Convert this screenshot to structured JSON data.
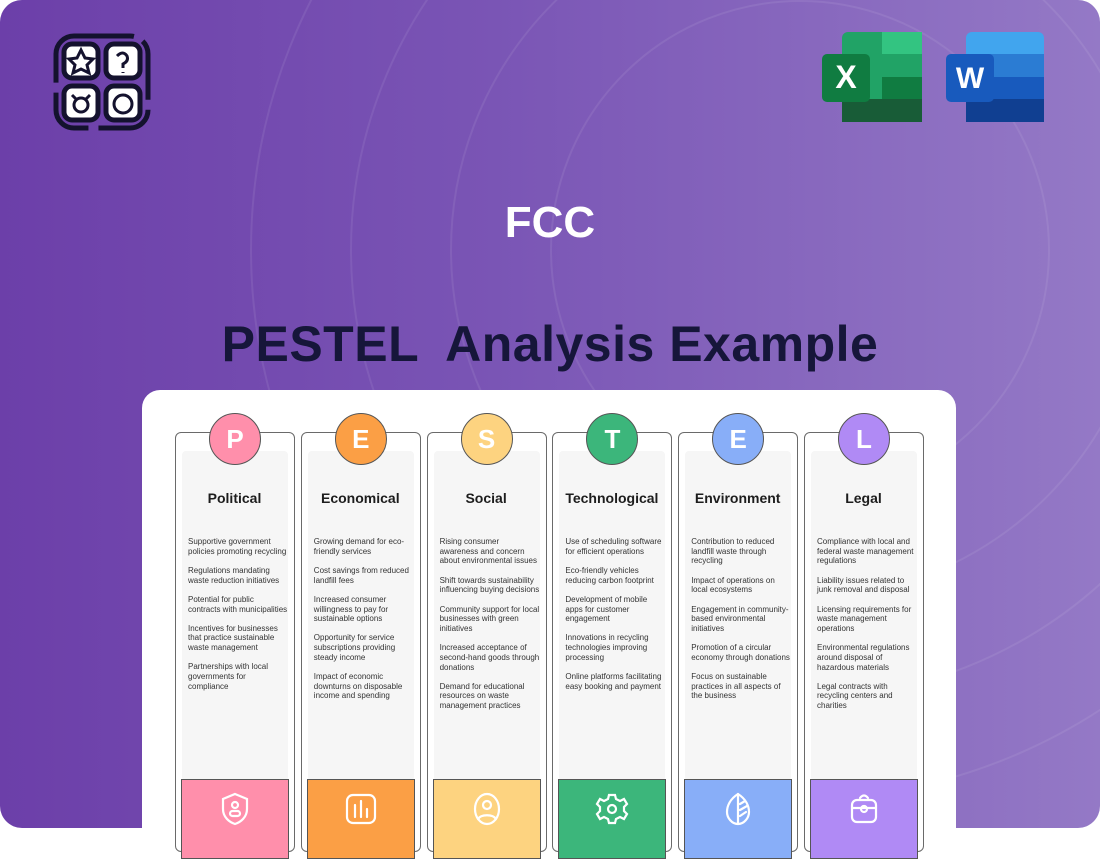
{
  "header": {
    "company": "FCC",
    "title": "PESTEL  Analysis Example",
    "app_icons": [
      "excel-icon",
      "word-icon"
    ],
    "excel_letter": "X",
    "word_letter": "W"
  },
  "columns": [
    {
      "letter": "P",
      "title": "Political",
      "color": "#ff8fab",
      "icon": "shield-user-icon",
      "items": [
        "Supportive government policies promoting recycling",
        "Regulations mandating waste reduction initiatives",
        "Potential for public contracts with municipalities",
        "Incentives for businesses that practice sustainable waste management",
        "Partnerships with local governments for compliance"
      ]
    },
    {
      "letter": "E",
      "title": "Economical",
      "color": "#fb9f45",
      "icon": "bar-chart-icon",
      "items": [
        "Growing demand for eco-friendly services",
        "Cost savings from reduced landfill fees",
        "Increased consumer willingness to pay for sustainable options",
        "Opportunity for service subscriptions providing steady income",
        "Impact of economic downturns on disposable income and spending"
      ]
    },
    {
      "letter": "S",
      "title": "Social",
      "color": "#fdd380",
      "icon": "user-circle-icon",
      "items": [
        "Rising consumer awareness and concern about environmental issues",
        "Shift towards sustainability influencing buying decisions",
        "Community support for local businesses with green initiatives",
        "Increased acceptance of second-hand goods through donations",
        "Demand for educational resources on waste management practices"
      ]
    },
    {
      "letter": "T",
      "title": "Technological",
      "color": "#3cb67b",
      "icon": "gear-icon",
      "items": [
        "Use of scheduling software for efficient operations",
        "Eco-friendly vehicles reducing carbon footprint",
        "Development of mobile apps for customer engagement",
        "Innovations in recycling technologies improving processing",
        "Online platforms facilitating easy booking and payment"
      ]
    },
    {
      "letter": "E",
      "title": "Environment",
      "color": "#88aef8",
      "icon": "leaf-icon",
      "items": [
        "Contribution to reduced landfill waste through recycling",
        "Impact of operations on local ecosystems",
        "Engagement in community-based environmental initiatives",
        "Promotion of a circular economy through donations",
        "Focus on sustainable practices in all aspects of the business"
      ]
    },
    {
      "letter": "L",
      "title": "Legal",
      "color": "#b08af5",
      "icon": "briefcase-icon",
      "items": [
        "Compliance with local and federal waste management regulations",
        "Liability issues related to junk removal and disposal",
        "Licensing requirements for waste management operations",
        "Environmental regulations around disposal of hazardous materials",
        "Legal contracts with recycling centers and charities"
      ]
    }
  ]
}
